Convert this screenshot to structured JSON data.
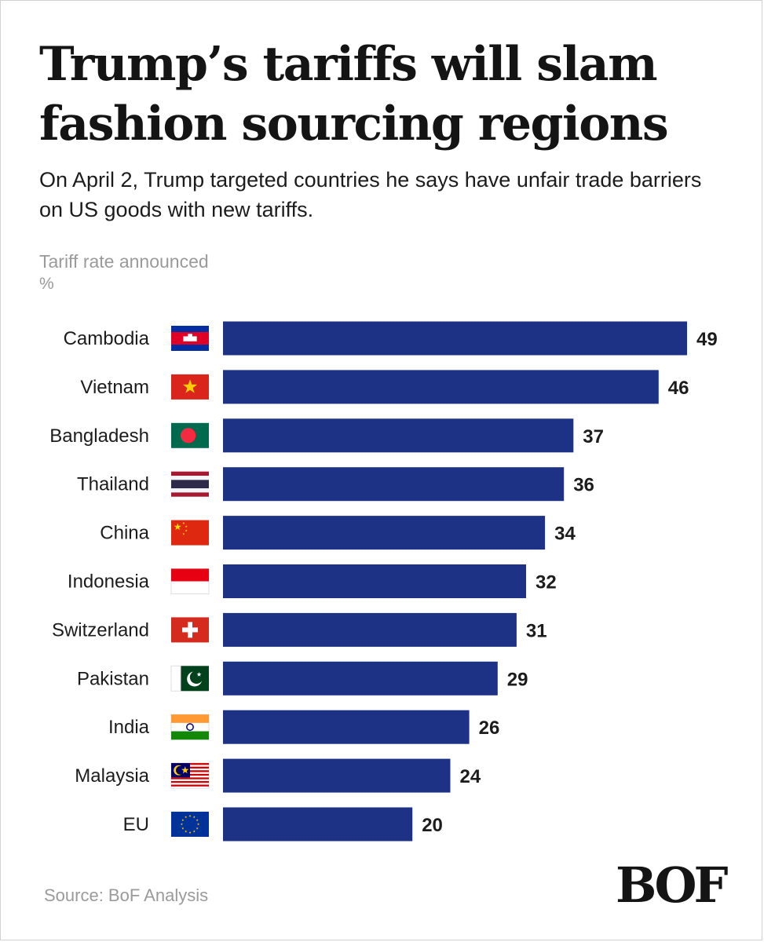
{
  "header": {
    "title": "Trump’s tariffs will slam fashion sourcing regions",
    "subtitle": "On April 2, Trump targeted countries he says have unfair trade barriers on US goods with new tariffs."
  },
  "footer": {
    "source": "Source: BoF Analysis",
    "logo": "BOF"
  },
  "colors": {
    "bar": "#1d3185",
    "text": "#1c1c1c",
    "muted": "#9a9a9a"
  },
  "chart_data": {
    "type": "bar",
    "orientation": "horizontal",
    "title": "Trump’s tariffs will slam fashion sourcing regions",
    "xlabel": "Tariff rate announced",
    "unit": "%",
    "xlim": [
      0,
      49
    ],
    "grid": false,
    "categories": [
      "Cambodia",
      "Vietnam",
      "Bangladesh",
      "Thailand",
      "China",
      "Indonesia",
      "Switzerland",
      "Pakistan",
      "India",
      "Malaysia",
      "EU"
    ],
    "values": [
      49,
      46,
      37,
      36,
      34,
      32,
      31,
      29,
      26,
      24,
      20
    ],
    "flags": [
      "cambodia-flag-icon",
      "vietnam-flag-icon",
      "bangladesh-flag-icon",
      "thailand-flag-icon",
      "china-flag-icon",
      "indonesia-flag-icon",
      "switzerland-flag-icon",
      "pakistan-flag-icon",
      "india-flag-icon",
      "malaysia-flag-icon",
      "eu-flag-icon"
    ]
  }
}
